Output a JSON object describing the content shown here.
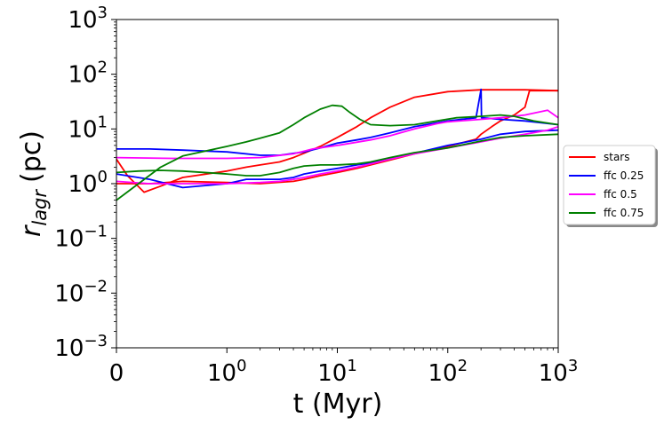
{
  "chart_data": {
    "type": "line",
    "title": "",
    "xlabel": "t (Myr)",
    "ylabel_main": "r",
    "ylabel_sub": "lagr",
    "ylabel_unit": "(pc)",
    "xscale": "symlog",
    "yscale": "log",
    "xlim": [
      0,
      1000
    ],
    "ylim": [
      0.001,
      1000
    ],
    "x_ticks": [
      {
        "value": 0,
        "base": "0",
        "exp": ""
      },
      {
        "value": 1,
        "base": "10",
        "exp": "0"
      },
      {
        "value": 10,
        "base": "10",
        "exp": "1"
      },
      {
        "value": 100,
        "base": "10",
        "exp": "2"
      },
      {
        "value": 1000,
        "base": "10",
        "exp": "3"
      }
    ],
    "y_ticks": [
      {
        "value": 0.001,
        "base": "10",
        "exp": "−3"
      },
      {
        "value": 0.01,
        "base": "10",
        "exp": "−2"
      },
      {
        "value": 0.1,
        "base": "10",
        "exp": "−1"
      },
      {
        "value": 1,
        "base": "10",
        "exp": "0"
      },
      {
        "value": 10,
        "base": "10",
        "exp": "1"
      },
      {
        "value": 100,
        "base": "10",
        "exp": "2"
      },
      {
        "value": 1000,
        "base": "10",
        "exp": "3"
      }
    ],
    "legend_position": "outside-right",
    "series": [
      {
        "name": "stars",
        "color": "#ff0000",
        "lines": [
          [
            [
              0,
              2.8
            ],
            [
              0.1,
              1.4
            ],
            [
              0.25,
              0.7
            ],
            [
              0.4,
              0.9
            ],
            [
              0.6,
              1.3
            ],
            [
              1,
              1.7
            ],
            [
              1.5,
              2.0
            ],
            [
              2,
              2.2
            ],
            [
              3,
              2.5
            ],
            [
              4,
              3.0
            ],
            [
              5,
              3.6
            ],
            [
              7,
              4.8
            ],
            [
              10,
              7
            ],
            [
              15,
              11
            ],
            [
              20,
              16
            ],
            [
              30,
              25
            ],
            [
              50,
              38
            ],
            [
              100,
              48
            ],
            [
              200,
              52
            ],
            [
              500,
              52
            ],
            [
              1000,
              50
            ]
          ],
          [
            [
              0,
              1.0
            ],
            [
              0.3,
              1.0
            ],
            [
              0.6,
              1.1
            ],
            [
              1,
              1.05
            ],
            [
              2,
              1.0
            ],
            [
              4,
              1.1
            ],
            [
              5,
              1.2
            ],
            [
              7,
              1.4
            ],
            [
              10,
              1.6
            ],
            [
              15,
              1.9
            ],
            [
              20,
              2.2
            ],
            [
              30,
              2.7
            ],
            [
              50,
              3.5
            ],
            [
              100,
              4.8
            ],
            [
              180,
              6.5
            ],
            [
              200,
              8
            ],
            [
              250,
              11
            ],
            [
              300,
              14
            ],
            [
              400,
              18
            ],
            [
              500,
              25
            ],
            [
              550,
              50
            ],
            [
              1000,
              50
            ]
          ]
        ]
      },
      {
        "name": "ffc 0.25",
        "color": "#0000ff",
        "lines": [
          [
            [
              0,
              4.3
            ],
            [
              0.3,
              4.3
            ],
            [
              0.6,
              4.1
            ],
            [
              1,
              3.8
            ],
            [
              2,
              3.3
            ],
            [
              3,
              3.3
            ],
            [
              5,
              3.8
            ],
            [
              7,
              4.5
            ],
            [
              10,
              5.5
            ],
            [
              15,
              6.3
            ],
            [
              20,
              7
            ],
            [
              30,
              8.5
            ],
            [
              50,
              11
            ],
            [
              100,
              14
            ],
            [
              180,
              16
            ],
            [
              200,
              53
            ],
            [
              202,
              16
            ],
            [
              300,
              15
            ],
            [
              500,
              14
            ],
            [
              1000,
              12
            ]
          ],
          [
            [
              0,
              1.5
            ],
            [
              0.3,
              1.2
            ],
            [
              0.6,
              0.85
            ],
            [
              1,
              1.0
            ],
            [
              1.5,
              1.2
            ],
            [
              2,
              1.2
            ],
            [
              3,
              1.2
            ],
            [
              4,
              1.3
            ],
            [
              5,
              1.5
            ],
            [
              7,
              1.7
            ],
            [
              10,
              1.9
            ],
            [
              15,
              2.2
            ],
            [
              20,
              2.4
            ],
            [
              30,
              2.8
            ],
            [
              50,
              3.6
            ],
            [
              100,
              5.0
            ],
            [
              200,
              6.5
            ],
            [
              300,
              8
            ],
            [
              500,
              9
            ],
            [
              1000,
              9.5
            ]
          ]
        ]
      },
      {
        "name": "ffc 0.5",
        "color": "#ff00ff",
        "lines": [
          [
            [
              0,
              3.0
            ],
            [
              0.5,
              2.9
            ],
            [
              1,
              2.9
            ],
            [
              2,
              3.0
            ],
            [
              4,
              3.5
            ],
            [
              6,
              4.3
            ],
            [
              10,
              5
            ],
            [
              20,
              6.3
            ],
            [
              30,
              7.5
            ],
            [
              50,
              10
            ],
            [
              80,
              12.5
            ],
            [
              100,
              13.5
            ],
            [
              200,
              15
            ],
            [
              300,
              16
            ],
            [
              500,
              18
            ],
            [
              800,
              22
            ],
            [
              1000,
              16
            ]
          ],
          [
            [
              0,
              1.1
            ],
            [
              0.3,
              1.0
            ],
            [
              0.6,
              1.0
            ],
            [
              1,
              1.0
            ],
            [
              2,
              1.05
            ],
            [
              3,
              1.1
            ],
            [
              4,
              1.2
            ],
            [
              5,
              1.3
            ],
            [
              7,
              1.5
            ],
            [
              10,
              1.7
            ],
            [
              15,
              2.0
            ],
            [
              20,
              2.3
            ],
            [
              30,
              2.8
            ],
            [
              50,
              3.5
            ],
            [
              100,
              4.5
            ],
            [
              200,
              5.8
            ],
            [
              300,
              6.8
            ],
            [
              500,
              8
            ],
            [
              800,
              9.5
            ],
            [
              1000,
              11
            ]
          ]
        ]
      },
      {
        "name": "ffc 0.75",
        "color": "#008000",
        "lines": [
          [
            [
              0,
              0.5
            ],
            [
              0.2,
              1.0
            ],
            [
              0.4,
              2.0
            ],
            [
              0.6,
              3.2
            ],
            [
              1,
              4.8
            ],
            [
              1.5,
              5.8
            ],
            [
              2,
              6.8
            ],
            [
              3,
              8.5
            ],
            [
              4,
              12
            ],
            [
              5,
              16
            ],
            [
              7,
              23
            ],
            [
              9,
              27
            ],
            [
              11,
              26
            ],
            [
              13,
              20
            ],
            [
              16,
              15
            ],
            [
              20,
              12
            ],
            [
              30,
              11.5
            ],
            [
              50,
              12
            ],
            [
              80,
              14
            ],
            [
              120,
              16
            ],
            [
              200,
              17
            ],
            [
              300,
              18
            ],
            [
              400,
              17
            ],
            [
              600,
              14
            ],
            [
              1000,
              12
            ]
          ],
          [
            [
              0,
              1.6
            ],
            [
              0.2,
              1.7
            ],
            [
              0.4,
              1.75
            ],
            [
              0.6,
              1.7
            ],
            [
              1,
              1.5
            ],
            [
              1.5,
              1.4
            ],
            [
              2,
              1.4
            ],
            [
              3,
              1.6
            ],
            [
              4,
              1.9
            ],
            [
              5,
              2.1
            ],
            [
              7,
              2.2
            ],
            [
              10,
              2.2
            ],
            [
              15,
              2.3
            ],
            [
              20,
              2.5
            ],
            [
              30,
              3.0
            ],
            [
              50,
              3.7
            ],
            [
              100,
              4.5
            ],
            [
              200,
              6
            ],
            [
              300,
              7
            ],
            [
              500,
              7.5
            ],
            [
              1000,
              8
            ]
          ]
        ]
      }
    ]
  }
}
